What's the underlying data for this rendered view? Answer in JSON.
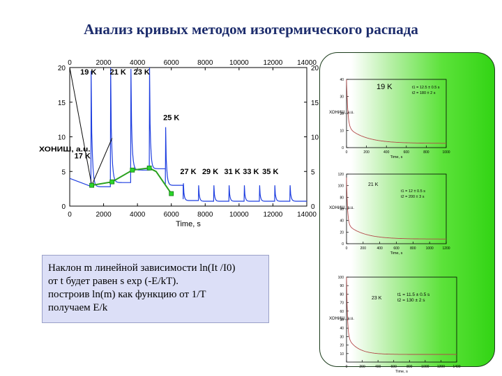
{
  "slide": {
    "title": "Анализ кривых методом изотермического распада",
    "note": [
      "Наклон m линейной зависимости ln(It /I0)",
      "от t будет равен s exp (-E/kT).",
      "построив  ln(m)  как  функцию  от  1/T",
      "получаем E/k"
    ]
  },
  "colors": {
    "title": "#1c2c6c",
    "trace": "#1f3fe0",
    "fit": "#0a0a0a",
    "envelope": "#2aa11e",
    "marker": "#2bd62b",
    "decay": "#b24a4a",
    "panel": "#3fd81e"
  },
  "chart_data": [
    {
      "type": "line",
      "title": "",
      "xlabel": "Time, s",
      "ylabel": "",
      "xlim": [
        0,
        14000
      ],
      "ylim": [
        0,
        20
      ],
      "x_ticks": [
        0,
        2000,
        4000,
        6000,
        8000,
        10000,
        12000,
        14000
      ],
      "y_ticks": [
        0,
        5,
        10,
        15,
        20
      ],
      "x_tick_labels": [
        "0",
        "2000",
        "4000",
        "6000",
        "8000",
        "10000",
        "12000",
        "14000"
      ],
      "y_tick_labels": [
        "0",
        "5",
        "10",
        "15",
        "20"
      ],
      "ylabel_glyph": "ХОНИШ, a.u.",
      "grid": false,
      "temperature_labels": [
        {
          "text": "19 K",
          "x": 1100,
          "y": 19.0
        },
        {
          "text": "21 K",
          "x": 2850,
          "y": 19.0
        },
        {
          "text": "23 K",
          "x": 4250,
          "y": 19.0
        },
        {
          "text": "25 K",
          "x": 6000,
          "y": 12.4
        },
        {
          "text": "17 K",
          "x": 750,
          "y": 6.9
        },
        {
          "text": "27 K",
          "x": 7000,
          "y": 4.6
        },
        {
          "text": "29 K",
          "x": 8300,
          "y": 4.6
        },
        {
          "text": "31 K",
          "x": 9600,
          "y": 4.6
        },
        {
          "text": "33 K",
          "x": 10700,
          "y": 4.6
        },
        {
          "text": "35 K",
          "x": 11850,
          "y": 4.6
        }
      ],
      "peaks": [
        {
          "t0": 1250,
          "peak": 19.5,
          "base": 2.8
        },
        {
          "t0": 2400,
          "peak": 20.0,
          "base": 3.4
        },
        {
          "t0": 3600,
          "peak": 19.8,
          "base": 5.2
        },
        {
          "t0": 4700,
          "peak": 20.0,
          "base": 5.4
        },
        {
          "t0": 5650,
          "peak": 11.4,
          "base": 3.0
        },
        {
          "t0": 6700,
          "peak": 3.3,
          "base": 0.8
        },
        {
          "t0": 7600,
          "peak": 3.0,
          "base": 0.7
        },
        {
          "t0": 8500,
          "peak": 3.0,
          "base": 0.7
        },
        {
          "t0": 9400,
          "peak": 3.0,
          "base": 0.7
        },
        {
          "t0": 10300,
          "peak": 3.0,
          "base": 0.7
        },
        {
          "t0": 11200,
          "peak": 3.0,
          "base": 0.7
        },
        {
          "t0": 12100,
          "peak": 3.0,
          "base": 0.7
        },
        {
          "t0": 13000,
          "peak": 3.0,
          "base": 0.7
        }
      ],
      "right_axis": {
        "ticks": [
          0,
          5,
          10,
          15,
          20
        ],
        "labels": [
          "0",
          "5",
          "10",
          "15",
          "20"
        ]
      },
      "fit_lines": [
        {
          "x": [
            0,
            1300
          ],
          "y": [
            20,
            3.0
          ]
        },
        {
          "x": [
            1300,
            2500
          ],
          "y": [
            3.0,
            9.8
          ]
        }
      ],
      "envelope": {
        "x": [
          1300,
          2500,
          3700,
          4700,
          5100,
          6000
        ],
        "y": [
          3.0,
          3.5,
          5.2,
          5.5,
          5.0,
          1.8
        ]
      },
      "markers": {
        "x": [
          1300,
          2500,
          3700,
          4700,
          6000
        ],
        "y": [
          3.0,
          3.5,
          5.2,
          5.5,
          1.8
        ]
      }
    },
    {
      "type": "line",
      "title": "",
      "label": "19 K",
      "params": [
        "t1 = 12.5 ± 0.5 s",
        "t2 = 180 ± 2 s"
      ],
      "xlabel": "Time, s",
      "ylabel_glyph": "ХОНИШ, a.u.",
      "xlim": [
        0,
        1000
      ],
      "ylim": [
        0,
        40
      ],
      "x_ticks": [
        0,
        200,
        400,
        600,
        800,
        1000
      ],
      "y_ticks": [
        0,
        10,
        20,
        30,
        40
      ],
      "x_tick_labels": [
        "0",
        "200",
        "400",
        "600",
        "800",
        "1000"
      ],
      "y_tick_labels": [
        "0",
        "10",
        "20",
        "30",
        "40"
      ],
      "decay": {
        "a1": 28,
        "tau1": 12.5,
        "a2": 10,
        "tau2": 180,
        "offset": 2.5
      }
    },
    {
      "type": "line",
      "title": "",
      "label": "21 K",
      "params": [
        "t1 = 12 ± 0.5 s",
        "t2 = 200 ± 3 s"
      ],
      "xlabel": "Time, s",
      "ylabel_glyph": "ХОНИШ, a.u.",
      "xlim": [
        0,
        1200
      ],
      "ylim": [
        0,
        120
      ],
      "x_ticks": [
        0,
        200,
        400,
        600,
        800,
        1000,
        1200
      ],
      "y_ticks": [
        0,
        20,
        40,
        60,
        80,
        100,
        120
      ],
      "x_tick_labels": [
        "0",
        "200",
        "400",
        "600",
        "800",
        "1000",
        "1200"
      ],
      "y_tick_labels": [
        "0",
        "20",
        "40",
        "60",
        "80",
        "100",
        "120"
      ],
      "decay": {
        "a1": 80,
        "tau1": 12,
        "a2": 26,
        "tau2": 200,
        "offset": 8
      }
    },
    {
      "type": "line",
      "title": "",
      "label": "23 K",
      "params": [
        "t1 = 11.5 ± 0.5 s",
        "t2 = 130 ± 2 s"
      ],
      "xlabel": "Time, s",
      "ylabel_glyph": "ХОНИШ, a.u.",
      "xlim": [
        0,
        1400
      ],
      "ylim": [
        0,
        100
      ],
      "x_ticks": [
        0,
        200,
        400,
        600,
        800,
        1000,
        1200,
        1400
      ],
      "y_ticks": [
        10,
        20,
        30,
        40,
        50,
        60,
        70,
        80,
        90,
        100
      ],
      "x_tick_labels": [
        "0",
        "200",
        "400",
        "600",
        "800",
        "1000",
        "1200",
        "1400"
      ],
      "y_tick_labels": [
        "10",
        "20",
        "30",
        "40",
        "50",
        "60",
        "70",
        "80",
        "90",
        "100"
      ],
      "decay": {
        "a1": 72,
        "tau1": 11.5,
        "a2": 22,
        "tau2": 130,
        "offset": 9
      }
    }
  ]
}
